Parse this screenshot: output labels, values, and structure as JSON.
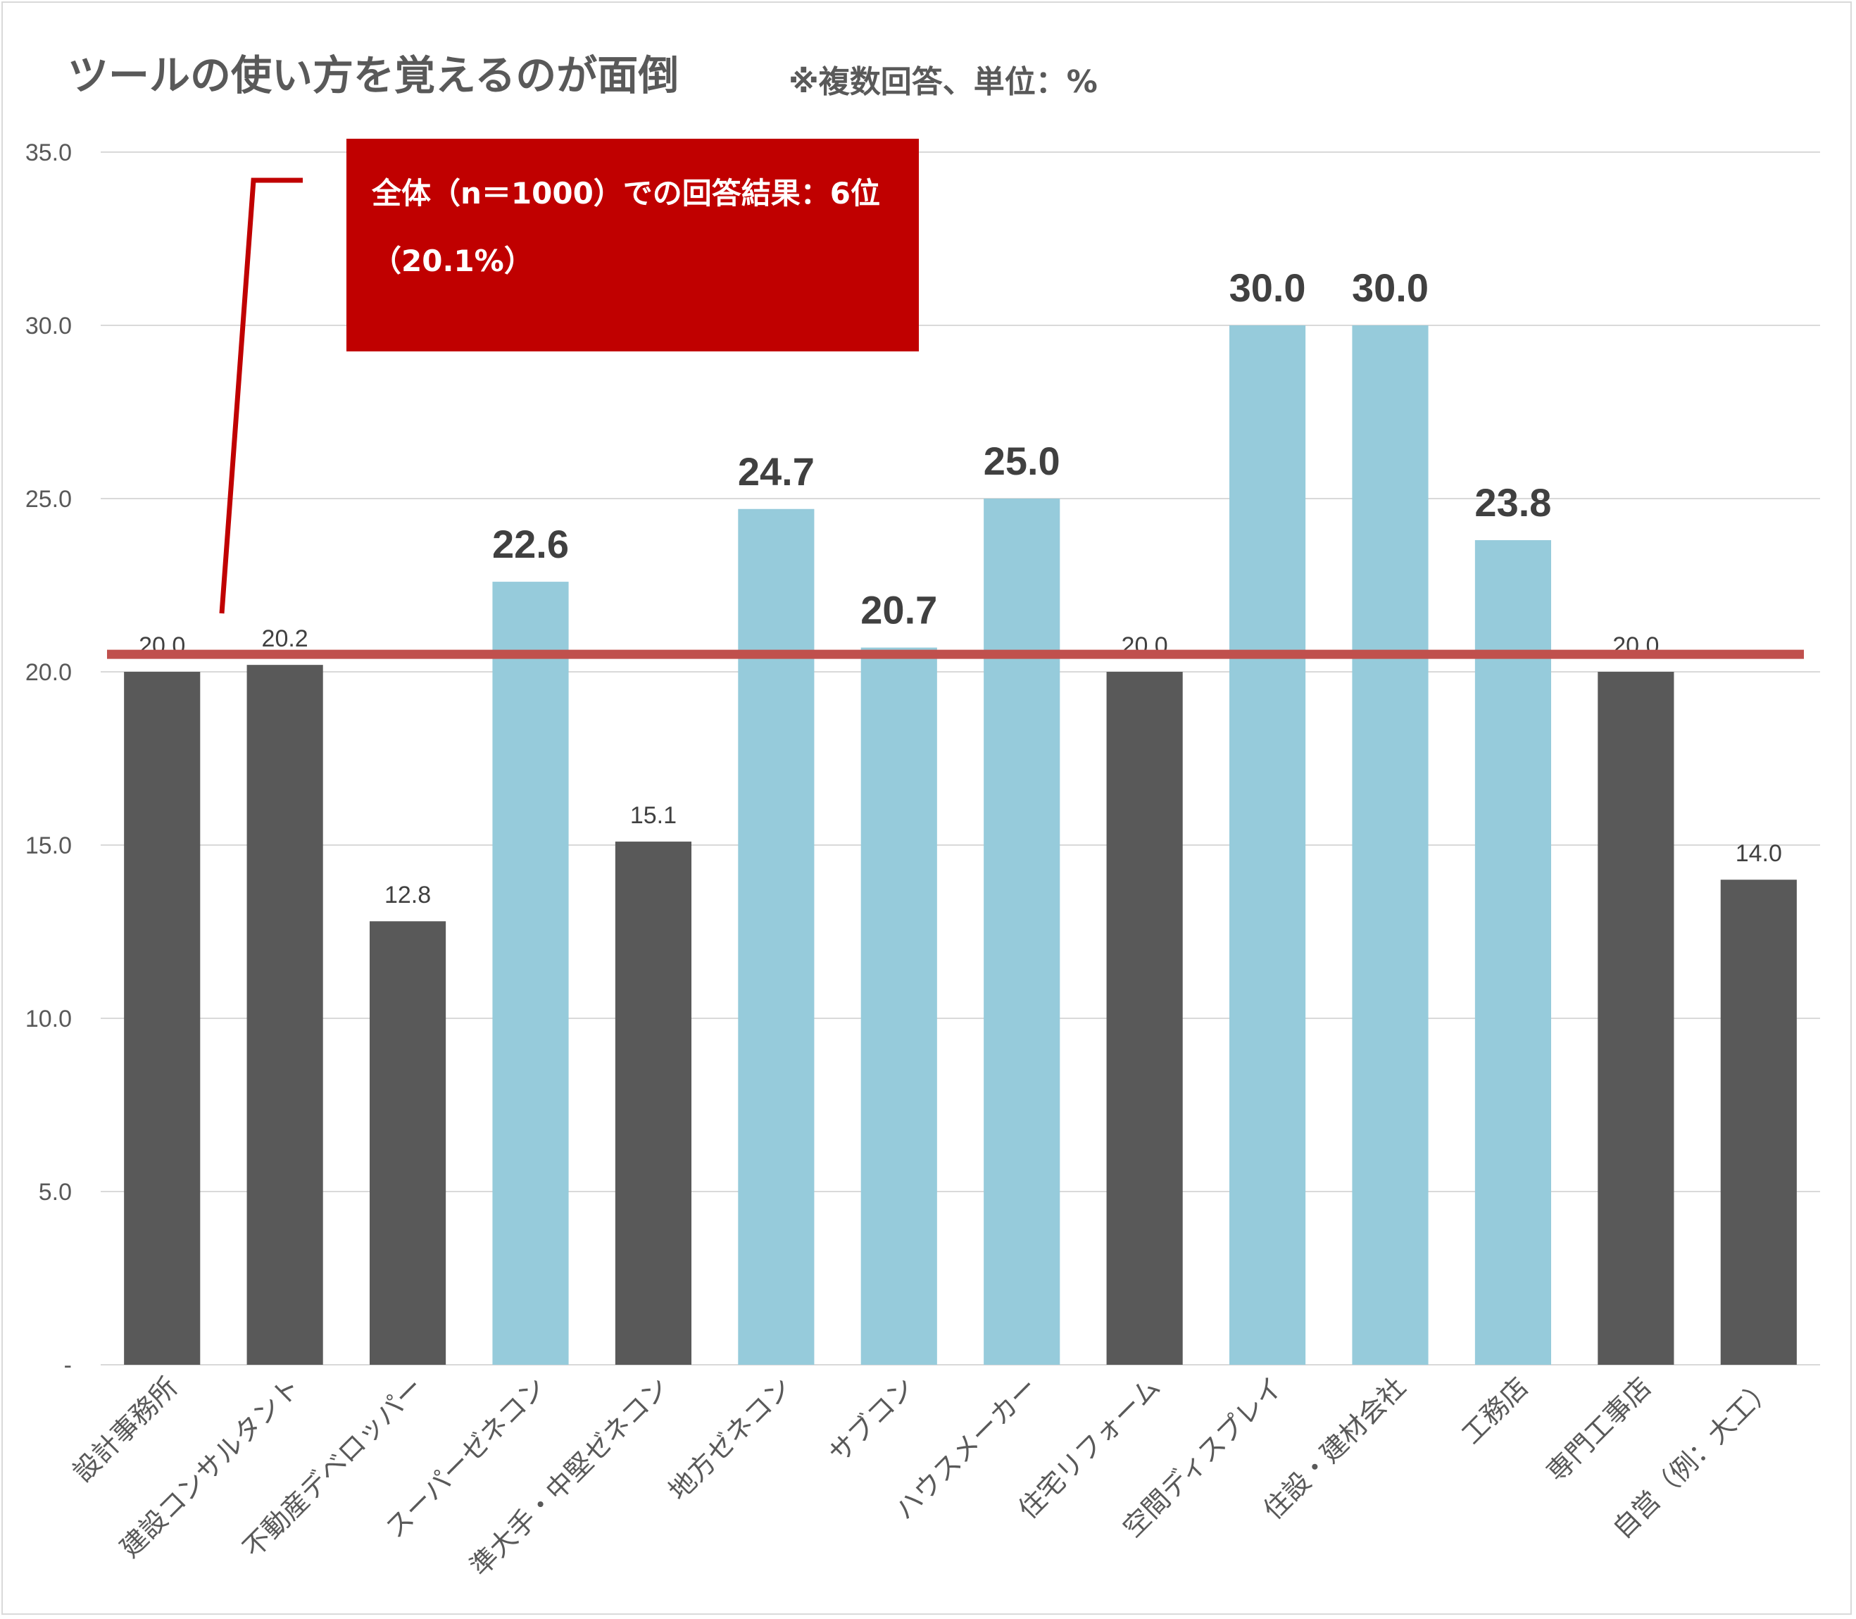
{
  "title": "ツールの使い方を覚えるのが面倒",
  "subtitle": "※複数回答、単位：%",
  "callout": {
    "text": "全体（n＝1000）での回答結果：6位（20.1%）"
  },
  "colors": {
    "dark": "#595959",
    "light": "#96cbdb",
    "reference": "#c0504d",
    "callout": "#c00000",
    "grid": "#d9d9d9",
    "axis_text": "#595959"
  },
  "chart_data": {
    "type": "bar",
    "categories": [
      "設計事務所",
      "建設コンサルタント",
      "不動産デベロッパー",
      "スーパーゼネコン",
      "準大手・中堅ゼネコン",
      "地方ゼネコン",
      "サブコン",
      "ハウスメーカー",
      "住宅リフォーム",
      "空間ディスプレイ",
      "住設・建材会社",
      "工務店",
      "専門工事店",
      "自営（例：大工）"
    ],
    "values": [
      20.0,
      20.2,
      12.8,
      22.6,
      15.1,
      24.7,
      20.7,
      25.0,
      20.0,
      30.0,
      30.0,
      23.8,
      20.0,
      14.0
    ],
    "data_labels": [
      "20.0",
      "20.2",
      "12.8",
      "22.6",
      "15.1",
      "24.7",
      "20.7",
      "25.0",
      "20.0",
      "30.0",
      "30.0",
      "23.8",
      "20.0",
      "14.0"
    ],
    "highlighted": [
      false,
      false,
      false,
      true,
      false,
      true,
      true,
      true,
      false,
      true,
      true,
      true,
      false,
      false
    ],
    "reference_line": 20.1,
    "yticks": [
      0,
      5,
      10,
      15,
      20,
      25,
      30,
      35
    ],
    "ytick_labels": [
      "-",
      "5.0",
      "10.0",
      "15.0",
      "20.0",
      "25.0",
      "30.0",
      "35.0"
    ],
    "ylim": [
      0,
      35
    ],
    "grid": true
  }
}
